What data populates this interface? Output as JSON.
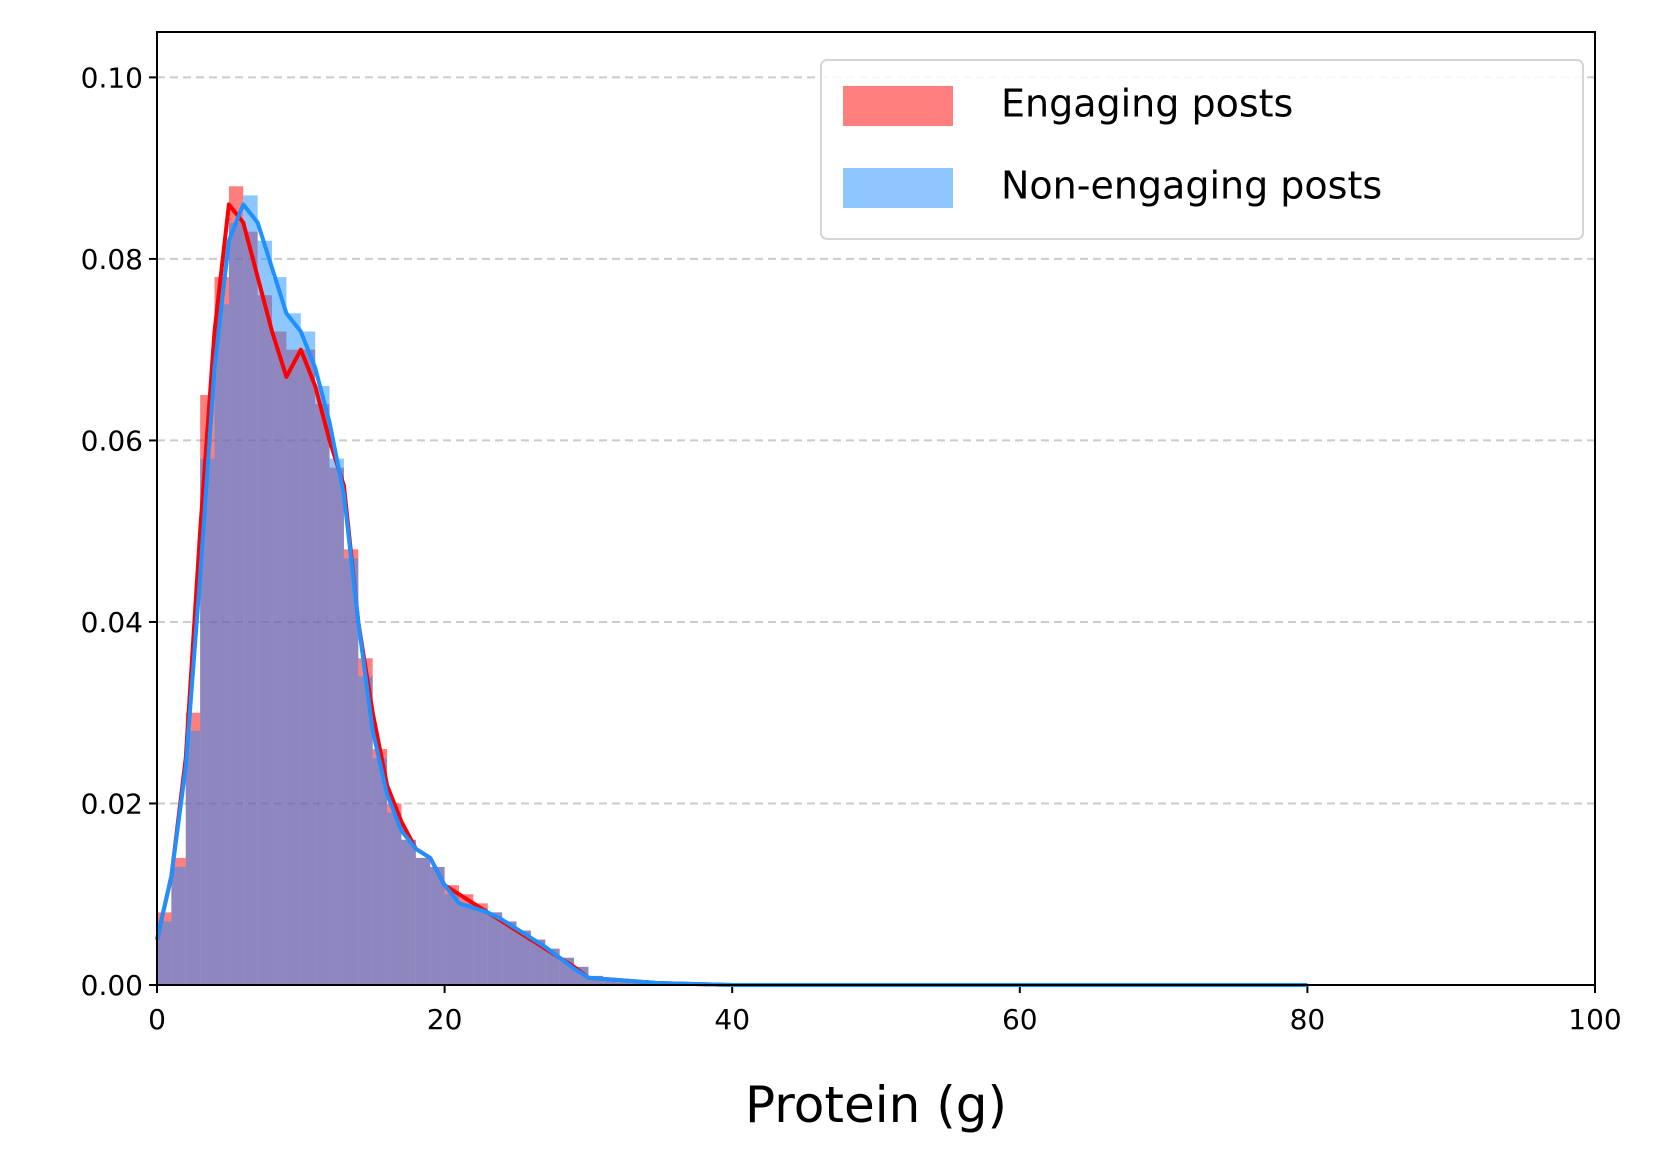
{
  "chart_data": {
    "type": "histogram",
    "xlabel": "Protein (g)",
    "bins": [
      0,
      1,
      2,
      3,
      4,
      5,
      6,
      7,
      8,
      9,
      10,
      11,
      12,
      13,
      14,
      15,
      16,
      17,
      18,
      19,
      20,
      21,
      22,
      23,
      24,
      25,
      26,
      27,
      28,
      29,
      30,
      31,
      32,
      33,
      34,
      35
    ],
    "series": [
      {
        "name": "Engaging posts",
        "color": "#ff0000",
        "opacity": 0.5,
        "values": [
          0.008,
          0.014,
          0.03,
          0.065,
          0.078,
          0.088,
          0.083,
          0.076,
          0.072,
          0.07,
          0.07,
          0.064,
          0.057,
          0.048,
          0.036,
          0.026,
          0.02,
          0.016,
          0.014,
          0.013,
          0.011,
          0.01,
          0.009,
          0.008,
          0.007,
          0.006,
          0.005,
          0.004,
          0.003,
          0.002,
          0.001,
          0.0005,
          0.0003,
          0.0002,
          0.0001
        ]
      },
      {
        "name": "Non-engaging posts",
        "color": "#1e90ff",
        "opacity": 0.5,
        "values": [
          0.007,
          0.013,
          0.028,
          0.058,
          0.075,
          0.084,
          0.087,
          0.082,
          0.078,
          0.074,
          0.072,
          0.066,
          0.058,
          0.047,
          0.034,
          0.025,
          0.019,
          0.016,
          0.014,
          0.013,
          0.01,
          0.009,
          0.0085,
          0.008,
          0.007,
          0.006,
          0.005,
          0.004,
          0.003,
          0.002,
          0.001,
          0.0005,
          0.0003,
          0.0002,
          0.0001
        ]
      }
    ],
    "kde": [
      {
        "color": "#ff0000",
        "x": [
          0,
          1,
          2,
          3,
          4,
          5,
          6,
          7,
          8,
          9,
          10,
          11,
          12,
          13,
          14,
          15,
          16,
          17,
          18,
          19,
          20,
          21,
          22,
          23,
          24,
          25,
          26,
          27,
          28,
          29,
          30,
          35,
          40,
          50,
          60,
          70,
          80
        ],
        "values": [
          0.005,
          0.012,
          0.025,
          0.05,
          0.072,
          0.086,
          0.084,
          0.078,
          0.072,
          0.067,
          0.07,
          0.066,
          0.06,
          0.055,
          0.04,
          0.03,
          0.022,
          0.018,
          0.015,
          0.014,
          0.011,
          0.01,
          0.009,
          0.008,
          0.007,
          0.006,
          0.005,
          0.004,
          0.003,
          0.002,
          0.0008,
          0.0002,
          0,
          0,
          0,
          0,
          0
        ]
      },
      {
        "color": "#1e90ff",
        "x": [
          0,
          1,
          2,
          3,
          4,
          5,
          6,
          7,
          8,
          9,
          10,
          11,
          12,
          13,
          14,
          15,
          16,
          17,
          18,
          19,
          20,
          21,
          22,
          23,
          24,
          25,
          26,
          27,
          28,
          29,
          30,
          35,
          40,
          50,
          60,
          70,
          80
        ],
        "values": [
          0.005,
          0.012,
          0.024,
          0.045,
          0.068,
          0.082,
          0.086,
          0.084,
          0.079,
          0.074,
          0.072,
          0.068,
          0.062,
          0.054,
          0.04,
          0.028,
          0.021,
          0.017,
          0.015,
          0.014,
          0.011,
          0.009,
          0.0085,
          0.008,
          0.0072,
          0.0062,
          0.0052,
          0.0042,
          0.003,
          0.0018,
          0.0008,
          0.0002,
          0,
          0,
          0,
          0,
          0
        ]
      }
    ],
    "xlim": [
      0,
      100
    ],
    "xticks": [
      0,
      20,
      40,
      60,
      80,
      100
    ],
    "ylim": [
      0,
      0.105
    ],
    "yticks": [
      {
        "value": 0,
        "label": "0.00"
      },
      {
        "value": 0.02,
        "label": "0.02"
      },
      {
        "value": 0.04,
        "label": "0.04"
      },
      {
        "value": 0.06,
        "label": "0.06"
      },
      {
        "value": 0.08,
        "label": "0.08"
      },
      {
        "value": 0.1,
        "label": "0.10"
      }
    ],
    "grid": true,
    "legend": "upper right"
  }
}
